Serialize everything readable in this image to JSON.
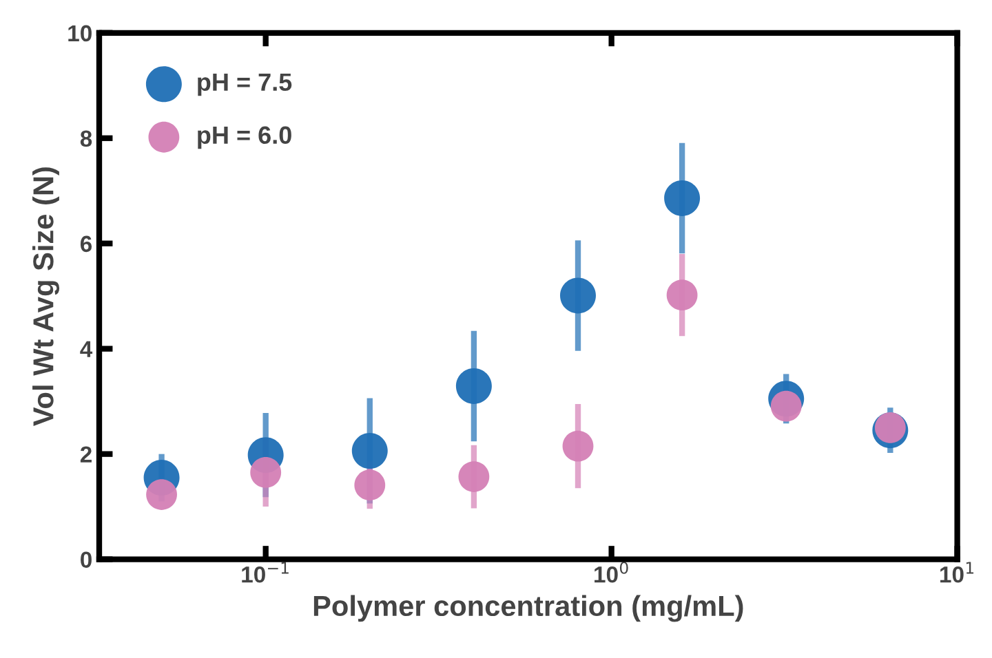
{
  "chart_data": {
    "type": "scatter",
    "xlabel": "Polymer concentration (mg/mL)",
    "ylabel": "Vol Wt Avg Size (N)",
    "log": "x",
    "x": [
      0.05,
      0.1,
      0.2,
      0.4,
      0.8,
      1.6,
      3.2,
      6.4
    ],
    "xlim": [
      0.033,
      10
    ],
    "xticks": [
      {
        "value": 0.1,
        "label": "10$^{−1}$"
      },
      {
        "value": 1,
        "label": "10$^{0}$"
      },
      {
        "value": 10,
        "label": "10$^{1}$"
      }
    ],
    "ylim": [
      0,
      10
    ],
    "yticks": [
      0,
      2,
      4,
      6,
      8,
      10
    ],
    "grid": false,
    "legend": "top left",
    "marker": "circle",
    "series": [
      {
        "name": "pH = 7.5",
        "color": "#1f6fb5",
        "values": [
          1.55,
          1.98,
          2.06,
          3.29,
          5.01,
          6.86,
          3.05,
          2.45
        ],
        "errors": [
          0.45,
          0.8,
          1.0,
          1.05,
          1.05,
          1.05,
          0.47,
          0.43
        ]
      },
      {
        "name": "pH = 6.0",
        "color": "#d47fb5",
        "values": [
          1.23,
          1.65,
          1.41,
          1.57,
          2.15,
          5.02,
          2.91,
          2.5
        ],
        "errors": [
          null,
          0.65,
          0.45,
          0.6,
          0.8,
          0.78,
          null,
          null
        ]
      }
    ]
  }
}
